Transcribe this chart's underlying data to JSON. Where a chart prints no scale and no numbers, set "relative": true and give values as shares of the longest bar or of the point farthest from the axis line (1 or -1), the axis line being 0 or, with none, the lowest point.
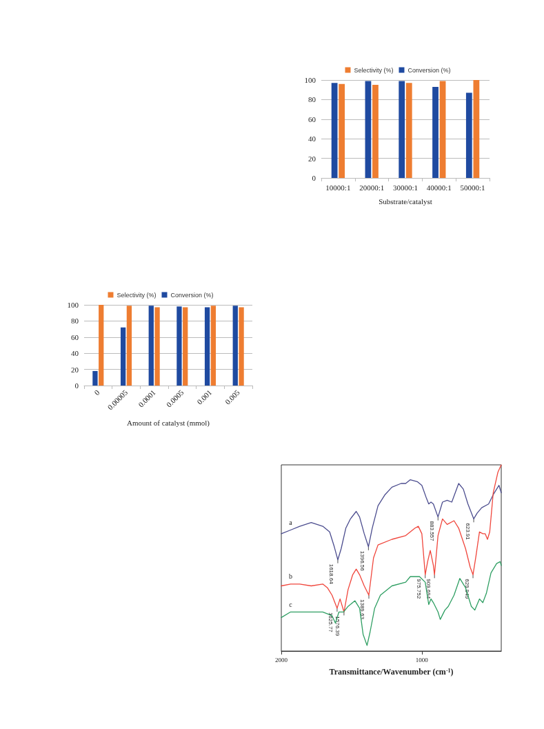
{
  "chart_data": [
    {
      "type": "bar",
      "xlabel": "Substrate/catalyst",
      "categories": [
        "10000:1",
        "20000:1",
        "30000:1",
        "40000:1",
        "50000:1"
      ],
      "series": [
        {
          "name": "Selectivity (%)",
          "color": "#ee7d31",
          "values": [
            96,
            95,
            97,
            99,
            100
          ]
        },
        {
          "name": "Conversion (%)",
          "color": "#1f4aa0",
          "values": [
            97,
            99,
            99,
            93,
            87
          ]
        }
      ],
      "ylim": [
        0,
        100
      ],
      "yticks": [
        0,
        20,
        40,
        60,
        80,
        100
      ],
      "grid": "y",
      "legend": "top"
    },
    {
      "type": "bar",
      "xlabel": "Amount of catalyst (mmol)",
      "categories": [
        "0",
        "0.00005",
        "0.0001",
        "0.0005",
        "0.001",
        "0.005"
      ],
      "series": [
        {
          "name": "Selectivity (%)",
          "color": "#ee7d31",
          "values": [
            100,
            99,
            97,
            97,
            99,
            97
          ]
        },
        {
          "name": "Conversion (%)",
          "color": "#1f4aa0",
          "values": [
            18,
            72,
            99,
            98,
            97,
            99
          ]
        }
      ],
      "ylim": [
        0,
        100
      ],
      "yticks": [
        0,
        20,
        40,
        60,
        80,
        100
      ],
      "grid": "y",
      "legend": "top"
    },
    {
      "type": "line",
      "relative": true,
      "xlabel": "Transmittance/Wavenumber (cm$^{-1}$)",
      "xlim": [
        2000,
        435
      ],
      "xticks": [
        2000,
        1000
      ],
      "grid": false,
      "legend": false,
      "marker": "none",
      "line_style": "solid",
      "series": [
        {
          "name": "a",
          "color": "#4b4c8e",
          "x": [
            2000,
            1934,
            1869,
            1787,
            1705,
            1656,
            1623,
            1598,
            1574,
            1541,
            1508,
            1467,
            1443,
            1410,
            1380,
            1353,
            1312,
            1262,
            1213,
            1148,
            1115,
            1082,
            1033,
            1000,
            967,
            951,
            935,
            918,
            885,
            853,
            820,
            787,
            738,
            705,
            672,
            631,
            607,
            574,
            525,
            492,
            451,
            435
          ],
          "values": [
            0.63,
            0.65,
            0.67,
            0.69,
            0.67,
            0.64,
            0.56,
            0.49,
            0.55,
            0.66,
            0.71,
            0.75,
            0.72,
            0.63,
            0.56,
            0.66,
            0.78,
            0.84,
            0.88,
            0.9,
            0.9,
            0.92,
            0.91,
            0.89,
            0.82,
            0.79,
            0.8,
            0.79,
            0.72,
            0.8,
            0.81,
            0.8,
            0.9,
            0.87,
            0.79,
            0.71,
            0.74,
            0.77,
            0.79,
            0.84,
            0.89,
            0.85
          ]
        },
        {
          "name": "b",
          "color": "#f0463c",
          "x": [
            2000,
            1934,
            1869,
            1787,
            1705,
            1672,
            1639,
            1603,
            1582,
            1554,
            1525,
            1492,
            1467,
            1443,
            1410,
            1377,
            1344,
            1312,
            1213,
            1115,
            1049,
            1025,
            1000,
            976,
            959,
            940,
            918,
            910,
            885,
            853,
            820,
            771,
            738,
            689,
            656,
            636,
            615,
            590,
            566,
            549,
            533,
            517,
            492,
            459,
            435
          ],
          "values": [
            0.35,
            0.36,
            0.36,
            0.35,
            0.36,
            0.34,
            0.3,
            0.23,
            0.28,
            0.21,
            0.33,
            0.41,
            0.44,
            0.41,
            0.35,
            0.3,
            0.5,
            0.57,
            0.6,
            0.62,
            0.66,
            0.67,
            0.63,
            0.41,
            0.48,
            0.54,
            0.46,
            0.41,
            0.62,
            0.71,
            0.68,
            0.7,
            0.66,
            0.55,
            0.45,
            0.41,
            0.51,
            0.64,
            0.63,
            0.63,
            0.6,
            0.64,
            0.85,
            0.96,
            1.0
          ]
        },
        {
          "name": "c",
          "color": "#2e9e62",
          "x": [
            2000,
            1934,
            1869,
            1787,
            1705,
            1639,
            1615,
            1590,
            1557,
            1525,
            1476,
            1443,
            1418,
            1390,
            1369,
            1336,
            1295,
            1213,
            1115,
            1082,
            1017,
            976,
            951,
            935,
            918,
            885,
            869,
            836,
            812,
            771,
            730,
            689,
            648,
            623,
            590,
            566,
            541,
            508,
            468,
            443,
            435
          ],
          "values": [
            0.18,
            0.21,
            0.21,
            0.21,
            0.21,
            0.19,
            0.15,
            0.21,
            0.21,
            0.24,
            0.27,
            0.23,
            0.09,
            0.03,
            0.1,
            0.23,
            0.3,
            0.35,
            0.37,
            0.4,
            0.4,
            0.37,
            0.25,
            0.28,
            0.26,
            0.21,
            0.17,
            0.22,
            0.24,
            0.3,
            0.39,
            0.34,
            0.24,
            0.22,
            0.28,
            0.26,
            0.31,
            0.42,
            0.47,
            0.48,
            0.46
          ]
        }
      ],
      "annotations": [
        {
          "text": "1618.64",
          "x": 1598,
          "y": 0.49
        },
        {
          "text": "1396.56",
          "x": 1380,
          "y": 0.56
        },
        {
          "text": "883.557",
          "x": 885,
          "y": 0.72
        },
        {
          "text": "623.91",
          "x": 631,
          "y": 0.71
        },
        {
          "text": "975.752",
          "x": 976,
          "y": 0.41
        },
        {
          "text": "909.694",
          "x": 910,
          "y": 0.41
        },
        {
          "text": "629.949",
          "x": 636,
          "y": 0.41
        },
        {
          "text": "1389.63",
          "x": 1377,
          "y": 0.3
        },
        {
          "text": "1625.77",
          "x": 1603,
          "y": 0.23
        },
        {
          "text": "1576.39",
          "x": 1554,
          "y": 0.21
        }
      ]
    }
  ]
}
